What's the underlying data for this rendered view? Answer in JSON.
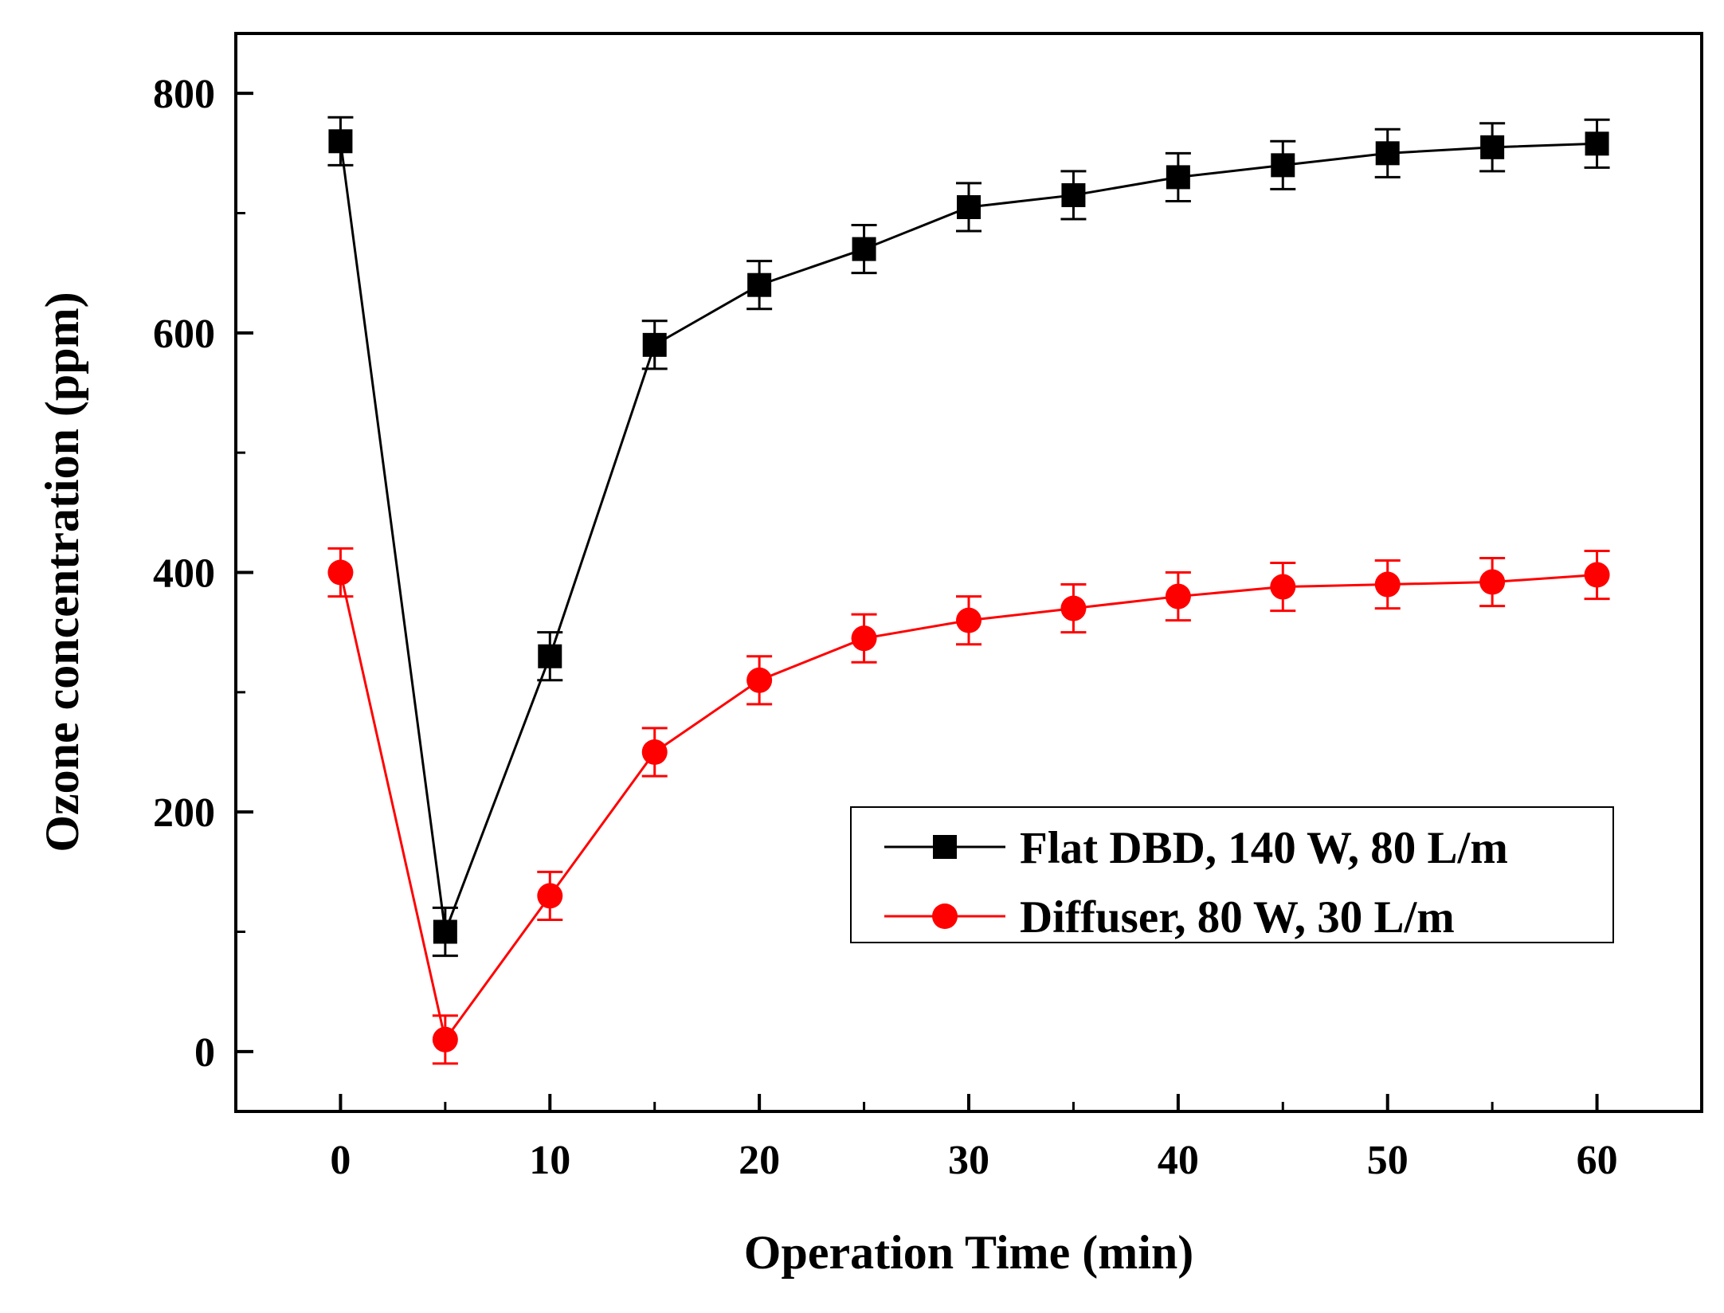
{
  "chart_data": {
    "type": "line",
    "title": "",
    "xlabel": "Operation Time (min)",
    "ylabel": "Ozone concentration (ppm)",
    "xlim": [
      -5,
      65
    ],
    "ylim": [
      -50,
      850
    ],
    "xticks": [
      0,
      10,
      20,
      30,
      40,
      50,
      60
    ],
    "yticks": [
      0,
      200,
      400,
      600,
      800
    ],
    "y_minor_ticks": [
      100,
      300,
      500,
      700
    ],
    "x_minor_ticks": [
      5,
      15,
      25,
      35,
      45,
      55
    ],
    "grid": false,
    "legend_position": "lower-right",
    "x": [
      0,
      5,
      10,
      15,
      20,
      25,
      30,
      35,
      40,
      45,
      50,
      55,
      60
    ],
    "series": [
      {
        "name": "Flat DBD, 140 W, 80 L/m",
        "color": "#000000",
        "marker": "square",
        "values": [
          760,
          100,
          330,
          590,
          640,
          670,
          705,
          715,
          730,
          740,
          750,
          755,
          758
        ],
        "errors": [
          20,
          20,
          20,
          20,
          20,
          20,
          20,
          20,
          20,
          20,
          20,
          20,
          20
        ]
      },
      {
        "name": "Diffuser, 80 W, 30 L/m",
        "color": "#ff0000",
        "marker": "circle",
        "values": [
          400,
          10,
          130,
          250,
          310,
          345,
          360,
          370,
          380,
          388,
          390,
          392,
          398
        ],
        "errors": [
          20,
          20,
          20,
          20,
          20,
          20,
          20,
          20,
          20,
          20,
          20,
          20,
          20
        ]
      }
    ]
  }
}
